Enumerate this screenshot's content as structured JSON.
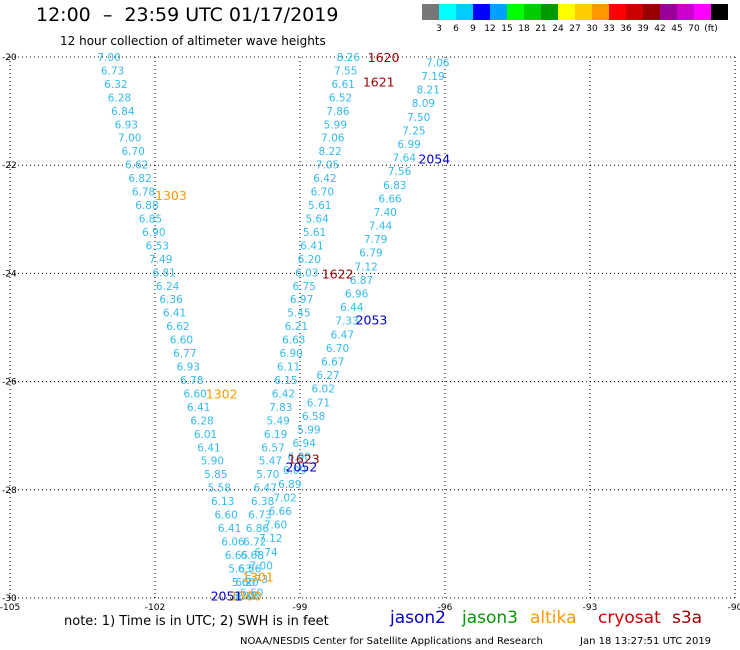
{
  "header": {
    "title": "12:00  –  23:59 UTC 01/17/2019",
    "subtitle": "12 hour collection of altimeter wave heights"
  },
  "legend": {
    "colors": [
      "#777777",
      "#00ffff",
      "#00ccff",
      "#0000ff",
      "#00a0ff",
      "#00ff00",
      "#00cc00",
      "#009900",
      "#ffff00",
      "#ffcc00",
      "#ff9900",
      "#ff0000",
      "#cc0000",
      "#990000",
      "#990099",
      "#cc00cc",
      "#ff00ff",
      "#000000"
    ],
    "ticks": [
      "3",
      "6",
      "9",
      "12",
      "15",
      "18",
      "21",
      "24",
      "27",
      "30",
      "33",
      "36",
      "39",
      "42",
      "45",
      "70",
      "(ft)"
    ]
  },
  "axes": {
    "x_ticks": [
      {
        "value": -105,
        "label": "-105"
      },
      {
        "value": -102,
        "label": "-102"
      },
      {
        "value": -99,
        "label": "-99"
      },
      {
        "value": -96,
        "label": "-96"
      },
      {
        "value": -93,
        "label": "-93"
      },
      {
        "value": -90,
        "label": "-90"
      }
    ],
    "y_ticks": [
      {
        "value": -20,
        "label": "-20"
      },
      {
        "value": -22,
        "label": "-22"
      },
      {
        "value": -24,
        "label": "-24"
      },
      {
        "value": -26,
        "label": "-26"
      },
      {
        "value": -28,
        "label": "-28"
      },
      {
        "value": -30,
        "label": "-30"
      }
    ]
  },
  "tracks": [
    {
      "id": "altika_1303_1302_1301",
      "from": [
        -102.95,
        -20.0
      ],
      "to": [
        -100.1,
        -29.95
      ],
      "values": [
        "7.00",
        "6.73",
        "6.32",
        "6.28",
        "6.84",
        "6.93",
        "7.00",
        "6.70",
        "6.62",
        "6.82",
        "6.78",
        "6.88",
        "6.85",
        "6.90",
        "6.53",
        "7.49",
        "6.81",
        "6.24",
        "6.36",
        "6.41",
        "6.62",
        "6.60",
        "6.77",
        "6.93",
        "6.78",
        "6.60",
        "6.41",
        "6.28",
        "6.01",
        "6.41",
        "5.90",
        "5.85",
        "5.58",
        "6.13",
        "6.60",
        "6.41",
        "6.06",
        "6.65",
        "5.63",
        "5.60",
        "4.48"
      ]
    },
    {
      "id": "cryosat_1620_1621_1622_1623",
      "from": [
        -98.0,
        -20.0
      ],
      "to": [
        -100.15,
        -29.95
      ],
      "values": [
        "8.26",
        "7.55",
        "6.61",
        "6.52",
        "7.86",
        "5.99",
        "7.06",
        "8.22",
        "7.05",
        "6.42",
        "6.70",
        "5.61",
        "5.64",
        "5.61",
        "6.41",
        "6.20",
        "6.03",
        "6.75",
        "6.97",
        "5.45",
        "6.21",
        "6.63",
        "6.90",
        "6.11",
        "6.15",
        "6.42",
        "7.83",
        "5.49",
        "6.19",
        "6.57",
        "5.47",
        "5.70",
        "6.47",
        "6.38",
        "6.73",
        "6.86",
        "6.72",
        "6.68",
        "6.56",
        "6.20",
        "6.01"
      ]
    },
    {
      "id": "jason2_2054_2053_2052_2051",
      "from": [
        -96.15,
        -20.1
      ],
      "to": [
        -100.0,
        -29.9
      ],
      "values": [
        "7.06",
        "7.19",
        "8.21",
        "8.09",
        "7.50",
        "7.25",
        "6.99",
        "7.64",
        "7.56",
        "6.83",
        "6.66",
        "7.40",
        "7.44",
        "7.79",
        "6.79",
        "7.12",
        "6.87",
        "6.96",
        "6.44",
        "7.33",
        "6.47",
        "6.70",
        "6.67",
        "6.27",
        "6.02",
        "6.71",
        "6.58",
        "5.99",
        "6.94",
        "6.90",
        "6.09",
        "6.89",
        "7.02",
        "6.66",
        "7.60",
        "7.12",
        "6.74",
        "7.00",
        "6.73",
        "6.60"
      ]
    }
  ],
  "pass_labels": [
    {
      "text": "1303",
      "lon": -102.0,
      "lat": -22.55,
      "color": "#ff9900"
    },
    {
      "text": "1302",
      "lon": -100.95,
      "lat": -26.22,
      "color": "#ff9900"
    },
    {
      "text": "1301",
      "lon": -100.2,
      "lat": -29.6,
      "color": "#ff9900"
    },
    {
      "text": "1300",
      "lon": -100.45,
      "lat": -29.95,
      "color": "#ff9900"
    },
    {
      "text": "1620",
      "lon": -97.6,
      "lat": -20.0,
      "color": "#990000"
    },
    {
      "text": "1621",
      "lon": -97.7,
      "lat": -20.45,
      "color": "#990000"
    },
    {
      "text": "1622",
      "lon": -98.55,
      "lat": -24.0,
      "color": "#990000"
    },
    {
      "text": "1623",
      "lon": -99.25,
      "lat": -27.42,
      "color": "#990000"
    },
    {
      "text": "2054",
      "lon": -96.55,
      "lat": -21.88,
      "color": "#0000cc"
    },
    {
      "text": "2053",
      "lon": -97.85,
      "lat": -24.85,
      "color": "#0000cc"
    },
    {
      "text": "2052",
      "lon": -99.3,
      "lat": -27.57,
      "color": "#0000cc"
    },
    {
      "text": "2051",
      "lon": -100.85,
      "lat": -29.95,
      "color": "#0000cc"
    }
  ],
  "footer": {
    "note": "note: 1) Time is in UTC; 2) SWH is in feet",
    "satellites": [
      {
        "name": "jason2",
        "color": "#0000cc"
      },
      {
        "name": "jason3",
        "color": "#009900"
      },
      {
        "name": "altika",
        "color": "#ff9900"
      },
      {
        "name": "cryosat",
        "color": "#cc0000"
      },
      {
        "name": "s3a",
        "color": "#990000"
      }
    ],
    "credit": "NOAA/NESDIS Center for Satellite Applications and Research",
    "timestamp": "Jan 18 13:27:51 UTC 2019"
  },
  "value_color": "#33bbee"
}
